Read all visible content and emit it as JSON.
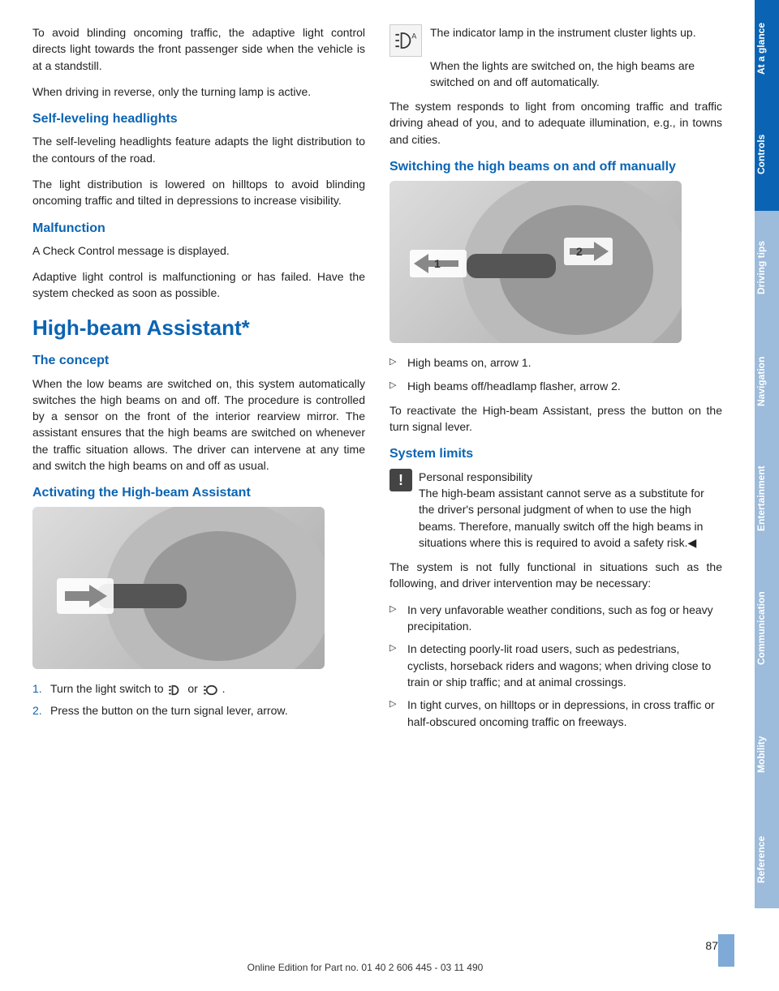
{
  "left": {
    "p1": "To avoid blinding oncoming traffic, the adaptive light control directs light towards the front passenger side when the vehicle is at a standstill.",
    "p2": "When driving in reverse, only the turning lamp is active.",
    "h_self": "Self-leveling headlights",
    "p3": "The self-leveling headlights feature adapts the light distribution to the contours of the road.",
    "p4": "The light distribution is lowered on hilltops to avoid blinding oncoming traffic and tilted in depressions to increase visibility.",
    "h_mal": "Malfunction",
    "p5": "A Check Control message is displayed.",
    "p6": "Adaptive light control is malfunctioning or has failed. Have the system checked as soon as possible.",
    "h_high": "High-beam Assistant*",
    "h_concept": "The concept",
    "p7": "When the low beams are switched on, this system automatically switches the high beams on and off. The procedure is controlled by a sensor on the front of the interior rearview mirror. The assistant ensures that the high beams are switched on whenever the traffic situation allows. The driver can intervene at any time and switch the high beams on and off as usual.",
    "h_act": "Activating the High-beam Assistant",
    "ol1": "Turn the light switch to ",
    "ol1_mid": " or ",
    "ol1_end": " .",
    "ol2": "Press the button on the turn signal lever, arrow."
  },
  "right": {
    "p1a": "The indicator lamp in the instrument cluster lights up.",
    "p1b": "When the lights are switched on, the high beams are switched on and off automatically.",
    "p2": "The system responds to light from oncoming traffic and traffic driving ahead of you, and to adequate illumination, e.g., in towns and cities.",
    "h_switch": "Switching the high beams on and off manually",
    "ul1": "High beams on, arrow 1.",
    "ul2": "High beams off/headlamp flasher, arrow 2.",
    "p3": "To reactivate the High-beam Assistant, press the button on the turn signal lever.",
    "h_limits": "System limits",
    "warn_title": "Personal responsibility",
    "warn_body": "The high-beam assistant cannot serve as a substitute for the driver's personal judgment of when to use the high beams. Therefore, manually switch off the high beams in situations where this is required to avoid a safety risk.◀",
    "p4": "The system is not fully functional in situations such as the following, and driver intervention may be necessary:",
    "li1": "In very unfavorable weather conditions, such as fog or heavy precipitation.",
    "li2": "In detecting poorly-lit road users, such as pedestrians, cyclists, horseback riders and wagons; when driving close to train or ship traffic; and at animal crossings.",
    "li3": "In tight curves, on hilltops or in depressions, in cross traffic or half-obscured oncoming traffic on freeways."
  },
  "sidebar": {
    "tabs": [
      {
        "label": "At a glance",
        "bg": "#0b64b3",
        "h": 120
      },
      {
        "label": "Controls",
        "bg": "#0b64b3",
        "h": 140
      },
      {
        "label": "Driving tips",
        "bg": "#9dbbda",
        "h": 140
      },
      {
        "label": "Navigation",
        "bg": "#9dbbda",
        "h": 140
      },
      {
        "label": "Entertainment",
        "bg": "#9dbbda",
        "h": 150
      },
      {
        "label": "Communication",
        "bg": "#9dbbda",
        "h": 170
      },
      {
        "label": "Mobility",
        "bg": "#9dbbda",
        "h": 140
      },
      {
        "label": "Reference",
        "bg": "#9dbbda",
        "h": 120
      }
    ]
  },
  "footer": "Online Edition for Part no. 01 40 2 606 445 - 03 11 490",
  "pagenum": "87"
}
